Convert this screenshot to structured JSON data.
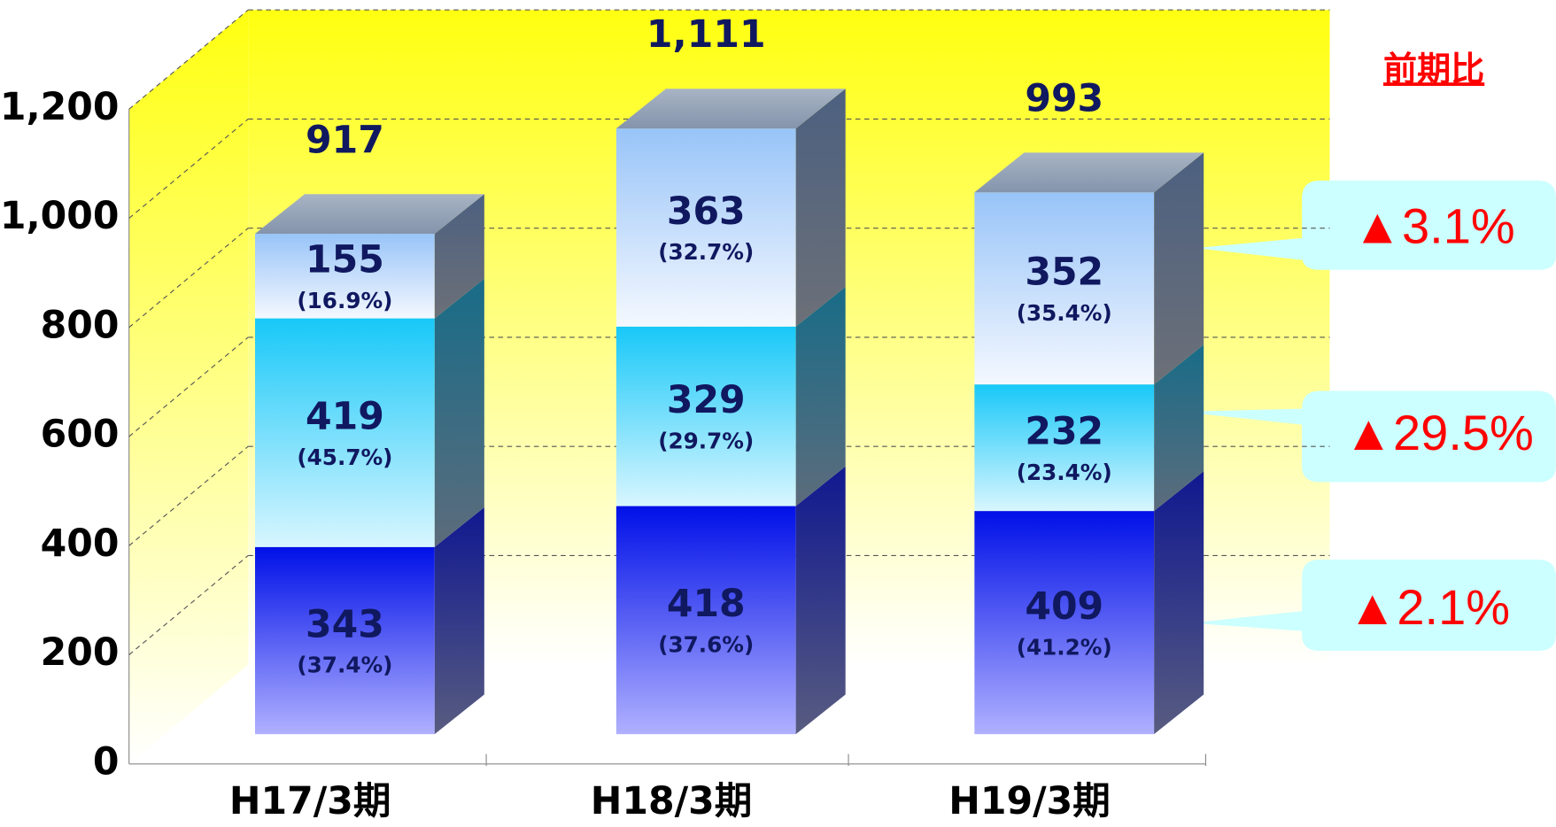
{
  "chart_data": {
    "type": "bar3d_stacked",
    "categories": [
      "H17/3期",
      "H18/3期",
      "H19/3期"
    ],
    "series": [
      {
        "color": "#1020e8",
        "values": [
          343,
          418,
          409
        ],
        "share_labels": [
          "(37.4%)",
          "(37.6%)",
          "(41.2%)"
        ]
      },
      {
        "color": "#20c8f8",
        "values": [
          419,
          329,
          232
        ],
        "share_labels": [
          "(45.7%)",
          "(29.7%)",
          "(23.4%)"
        ]
      },
      {
        "color": "#a0c8f8",
        "values": [
          155,
          363,
          352
        ],
        "share_labels": [
          "(16.9%)",
          "(32.7%)",
          "(35.4%)"
        ]
      }
    ],
    "totals": [
      917,
      1111,
      993
    ],
    "total_labels": [
      "917",
      "1,111",
      "993"
    ],
    "ylim": [
      0,
      1200
    ],
    "yticks": [
      0,
      200,
      400,
      600,
      800,
      {
        "value": 1000,
        "label": "1,000"
      },
      {
        "value": 1200,
        "label": "1,200"
      }
    ],
    "grid": true,
    "annotations": {
      "header": "前期比",
      "changes": [
        "▲2.1%",
        "▲29.5%",
        "▲3.1%"
      ]
    }
  }
}
